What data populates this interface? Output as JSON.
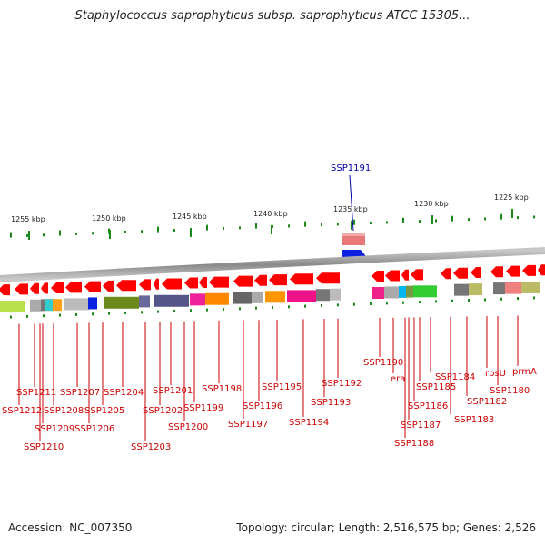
{
  "title": "Staphylococcus saprophyticus subsp. saprophyticus ATCC 15305...",
  "accession": "Accession: NC_007350",
  "summary": "Topology: circular; Length: 2,516,575 bp; Genes: 2,526",
  "highlight_gene": "SSP1191",
  "colors": {
    "gene_label": "#cc0000",
    "highlight_label": "#0000aa",
    "forward_gene": "#ff0000",
    "tick": "#1a8a1a"
  },
  "scale_labels": [
    "1255 kbp",
    "1250 kbp",
    "1245 kbp",
    "1240 kbp",
    "1235 kbp",
    "1230 kbp",
    "1225 kbp"
  ],
  "gene_labels": [
    "SSP1212",
    "SSP1211",
    "SSP1210",
    "SSP1209",
    "SSP1208",
    "SSP1207",
    "SSP1206",
    "SSP1205",
    "SSP1204",
    "SSP1203",
    "SSP1202",
    "SSP1201",
    "SSP1200",
    "SSP1199",
    "SSP1198",
    "SSP1197",
    "SSP1196",
    "SSP1195",
    "SSP1194",
    "SSP1193",
    "SSP1192",
    "SSP1190",
    "era",
    "SSP1188",
    "SSP1187",
    "SSP1186",
    "SSP1185",
    "SSP1184",
    "SSP1183",
    "SSP1182",
    "rpsU",
    "SSP1180",
    "prmA"
  ]
}
